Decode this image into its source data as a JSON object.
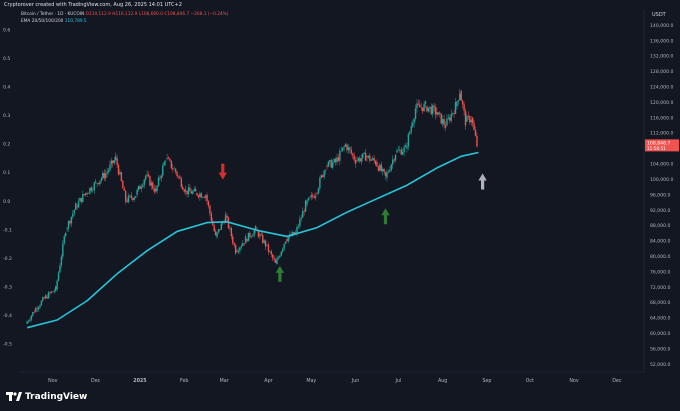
{
  "header": {
    "credit": "Cryptorover created with TradingView.com, Aug 26, 2025 14:01 UTC+2",
    "symbol_line_prefix": "Bitcoin / Tether · 1D · KUCOIN",
    "ohlc_text": "O110,112.9 H110,112.9 L108,660.0 C108,846.7 −268.1 (−0.24%)",
    "ema_prefix": "EMA 20/50/100/200",
    "ema_value": "110,789.5"
  },
  "colors": {
    "background": "#131722",
    "up_candle": "#26a69a",
    "down_candle": "#ef5350",
    "ema_line": "#26c6da",
    "last_price_bg": "#ef5350",
    "bear_arrow": "#d32f2f",
    "bull_arrow": "#2e7d32",
    "current_arrow": "#b0b3ba"
  },
  "footer": {
    "brand": "TradingView"
  },
  "chart_data": {
    "type": "candlestick",
    "right_axis": {
      "unit": "USDT",
      "ticks": [
        "140,000.0",
        "136,000.0",
        "132,000.0",
        "128,000.0",
        "124,000.0",
        "120,000.0",
        "116,000.0",
        "112,000.0",
        "108,000.0",
        "104,000.0",
        "100,000.0",
        "96,000.0",
        "92,000.0",
        "88,000.0",
        "84,000.0",
        "80,000.0",
        "76,000.0",
        "72,000.0",
        "68,000.0",
        "64,000.0",
        "60,000.0",
        "56,000.0",
        "52,000.0"
      ],
      "last_price_label": "108,846.7",
      "last_price_countdown": "11:58:51"
    },
    "left_axis": {
      "ticks": [
        "0.6",
        "0.5",
        "0.4",
        "0.3",
        "0.2",
        "0.1",
        "0.0",
        "-0.1",
        "-0.2",
        "-0.3",
        "-0.4",
        "-0.5"
      ]
    },
    "x_axis": {
      "ticks": [
        "Nov",
        "Dec",
        "2025",
        "Feb",
        "Mar",
        "Apr",
        "May",
        "Jun",
        "Jul",
        "Aug",
        "Sep",
        "Oct",
        "Nov",
        "Dec"
      ]
    },
    "ylim": [
      50000,
      144000
    ],
    "price_series": [
      {
        "date": "2024-10-14",
        "price": 62500
      },
      {
        "date": "2024-10-21",
        "price": 66500
      },
      {
        "date": "2024-10-28",
        "price": 69500
      },
      {
        "date": "2024-11-04",
        "price": 71500
      },
      {
        "date": "2024-11-11",
        "price": 87000
      },
      {
        "date": "2024-11-18",
        "price": 93000
      },
      {
        "date": "2024-11-25",
        "price": 96500
      },
      {
        "date": "2024-12-02",
        "price": 99000
      },
      {
        "date": "2024-12-09",
        "price": 101500
      },
      {
        "date": "2024-12-16",
        "price": 105500
      },
      {
        "date": "2024-12-23",
        "price": 94500
      },
      {
        "date": "2024-12-30",
        "price": 96000
      },
      {
        "date": "2025-01-06",
        "price": 101000
      },
      {
        "date": "2025-01-13",
        "price": 97000
      },
      {
        "date": "2025-01-20",
        "price": 105500
      },
      {
        "date": "2025-01-27",
        "price": 102000
      },
      {
        "date": "2025-02-03",
        "price": 97000
      },
      {
        "date": "2025-02-10",
        "price": 96500
      },
      {
        "date": "2025-02-17",
        "price": 96000
      },
      {
        "date": "2025-02-24",
        "price": 85000
      },
      {
        "date": "2025-03-03",
        "price": 90500
      },
      {
        "date": "2025-03-10",
        "price": 81500
      },
      {
        "date": "2025-03-17",
        "price": 84500
      },
      {
        "date": "2025-03-24",
        "price": 87000
      },
      {
        "date": "2025-03-31",
        "price": 83000
      },
      {
        "date": "2025-04-07",
        "price": 78000
      },
      {
        "date": "2025-04-14",
        "price": 84500
      },
      {
        "date": "2025-04-21",
        "price": 86000
      },
      {
        "date": "2025-04-28",
        "price": 93500
      },
      {
        "date": "2025-05-05",
        "price": 96500
      },
      {
        "date": "2025-05-12",
        "price": 103500
      },
      {
        "date": "2025-05-19",
        "price": 104500
      },
      {
        "date": "2025-05-26",
        "price": 109000
      },
      {
        "date": "2025-06-02",
        "price": 105000
      },
      {
        "date": "2025-06-09",
        "price": 106000
      },
      {
        "date": "2025-06-16",
        "price": 104500
      },
      {
        "date": "2025-06-23",
        "price": 100500
      },
      {
        "date": "2025-06-30",
        "price": 107000
      },
      {
        "date": "2025-07-07",
        "price": 108000
      },
      {
        "date": "2025-07-14",
        "price": 118500
      },
      {
        "date": "2025-07-21",
        "price": 119000
      },
      {
        "date": "2025-07-28",
        "price": 117500
      },
      {
        "date": "2025-08-04",
        "price": 114000
      },
      {
        "date": "2025-08-11",
        "price": 119000
      },
      {
        "date": "2025-08-14",
        "price": 123000
      },
      {
        "date": "2025-08-18",
        "price": 115000
      },
      {
        "date": "2025-08-22",
        "price": 116000
      },
      {
        "date": "2025-08-26",
        "price": 108846.7
      }
    ],
    "ema_series": [
      {
        "date": "2024-10-14",
        "value": 61500
      },
      {
        "date": "2024-11-04",
        "value": 63500
      },
      {
        "date": "2024-11-25",
        "value": 68500
      },
      {
        "date": "2024-12-16",
        "value": 75500
      },
      {
        "date": "2025-01-06",
        "value": 81500
      },
      {
        "date": "2025-01-27",
        "value": 86500
      },
      {
        "date": "2025-02-17",
        "value": 88800
      },
      {
        "date": "2025-03-03",
        "value": 89000
      },
      {
        "date": "2025-03-24",
        "value": 86800
      },
      {
        "date": "2025-04-14",
        "value": 85200
      },
      {
        "date": "2025-05-05",
        "value": 87500
      },
      {
        "date": "2025-05-26",
        "value": 91500
      },
      {
        "date": "2025-06-16",
        "value": 95000
      },
      {
        "date": "2025-07-07",
        "value": 98500
      },
      {
        "date": "2025-07-28",
        "value": 103000
      },
      {
        "date": "2025-08-14",
        "value": 106000
      },
      {
        "date": "2025-08-26",
        "value": 107000
      }
    ],
    "markers": [
      {
        "type": "down-arrow",
        "date": "2025-02-28",
        "price": 101000
      },
      {
        "type": "up-arrow",
        "date": "2025-04-09",
        "price": 76500
      },
      {
        "type": "up-arrow",
        "date": "2025-06-22",
        "price": 91500
      },
      {
        "type": "up-arrow",
        "date": "2025-08-29",
        "price": 100500
      }
    ],
    "grid": false
  }
}
